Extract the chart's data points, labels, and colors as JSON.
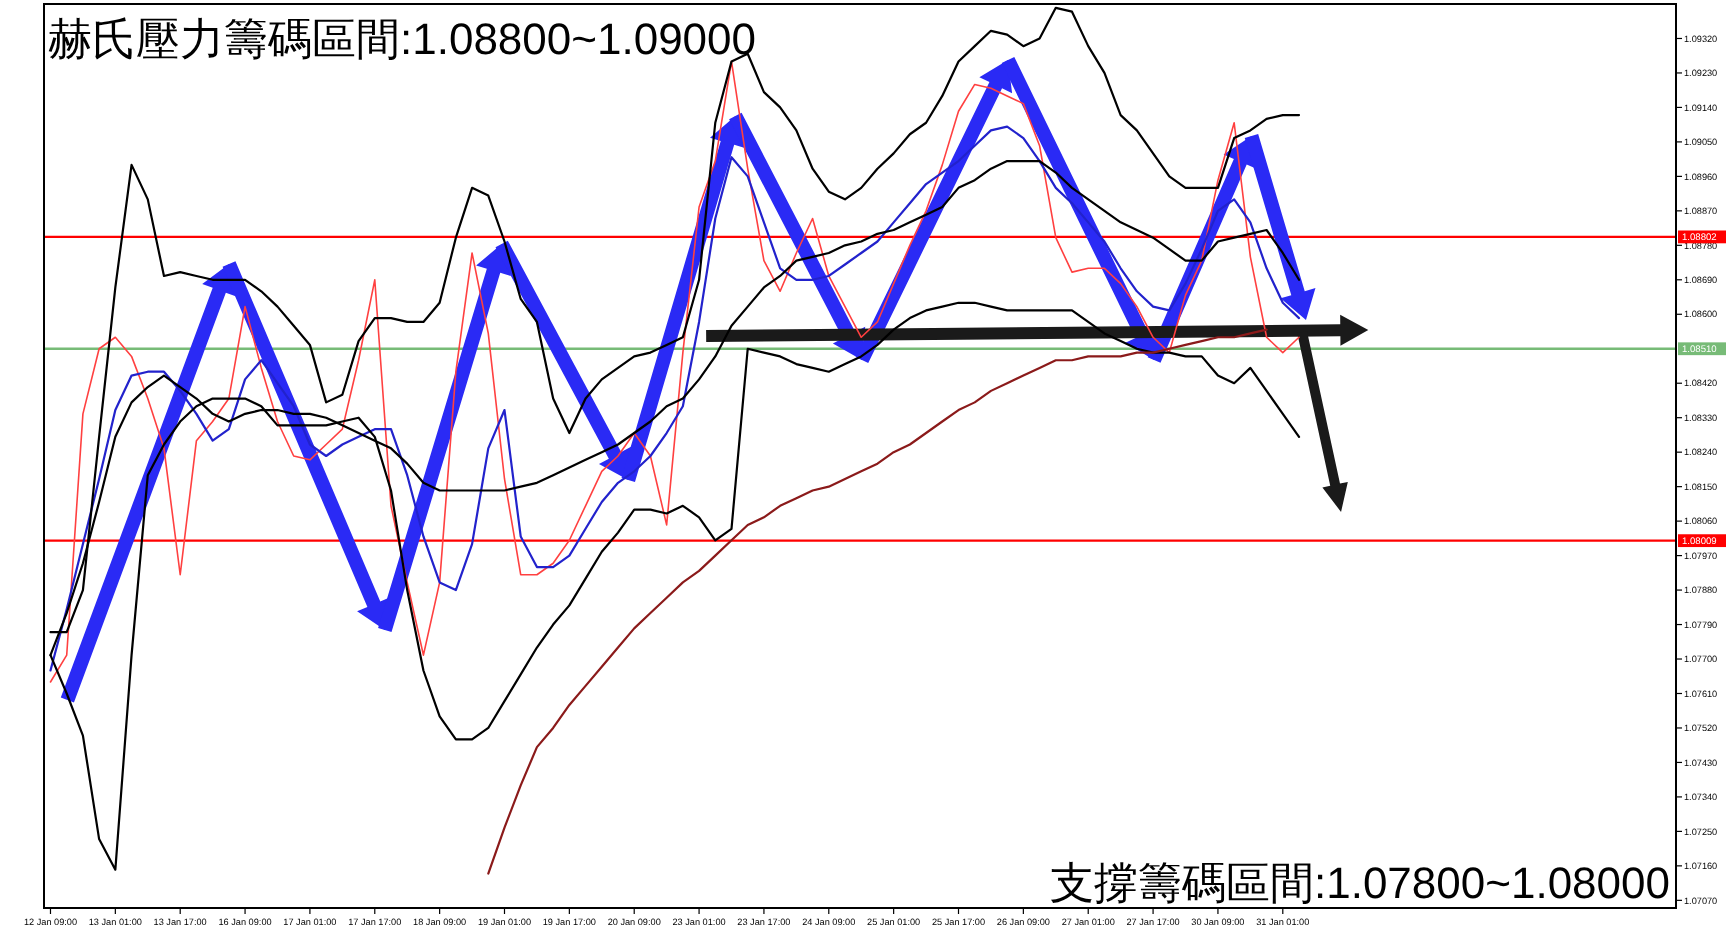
{
  "chart_data": {
    "type": "line",
    "title": "赫氏壓力籌碼區間:1.08800~1.09000",
    "annotations": [
      "支撐籌碼區間:1.07800~1.08000"
    ],
    "categories": [
      "12 Jan 09:00",
      null,
      null,
      null,
      "13 Jan 01:00",
      null,
      null,
      null,
      "13 Jan 17:00",
      null,
      null,
      null,
      "16 Jan 09:00",
      null,
      null,
      null,
      "17 Jan 01:00",
      null,
      null,
      null,
      "17 Jan 17:00",
      null,
      null,
      null,
      "18 Jan 09:00",
      null,
      null,
      null,
      "19 Jan 01:00",
      null,
      null,
      null,
      "19 Jan 17:00",
      null,
      null,
      null,
      "20 Jan 09:00",
      null,
      null,
      null,
      "23 Jan 01:00",
      null,
      null,
      null,
      "23 Jan 17:00",
      null,
      null,
      null,
      "24 Jan 09:00",
      null,
      null,
      null,
      "25 Jan 01:00",
      null,
      null,
      null,
      "25 Jan 17:00",
      null,
      null,
      null,
      "26 Jan 09:00",
      null,
      null,
      null,
      "27 Jan 01:00",
      null,
      null,
      null,
      "27 Jan 17:00",
      null,
      null,
      null,
      "30 Jan 09:00",
      null,
      null,
      null,
      "31 Jan 01:00",
      null,
      null,
      null,
      null,
      null,
      null,
      null,
      null,
      null,
      null,
      null,
      null,
      null,
      null,
      null,
      null,
      null,
      null,
      null,
      null,
      null,
      null,
      null,
      null
    ],
    "ylim": [
      1.0705,
      1.0941
    ],
    "yticks": [
      {
        "value": 1.0932,
        "label": "1.09320"
      },
      {
        "value": 1.0923,
        "label": "1.09230"
      },
      {
        "value": 1.0914,
        "label": "1.09140"
      },
      {
        "value": 1.0905,
        "label": "1.09050"
      },
      {
        "value": 1.0896,
        "label": "1.08960"
      },
      {
        "value": 1.0887,
        "label": "1.08870"
      },
      {
        "value": 1.0878,
        "label": "1.08780"
      },
      {
        "value": 1.0869,
        "label": "1.08690"
      },
      {
        "value": 1.086,
        "label": "1.08600"
      },
      {
        "value": 1.0842,
        "label": "1.08420"
      },
      {
        "value": 1.0833,
        "label": "1.08330"
      },
      {
        "value": 1.0824,
        "label": "1.08240"
      },
      {
        "value": 1.0815,
        "label": "1.08150"
      },
      {
        "value": 1.0806,
        "label": "1.08060"
      },
      {
        "value": 1.0797,
        "label": "1.07970"
      },
      {
        "value": 1.0788,
        "label": "1.07880"
      },
      {
        "value": 1.0779,
        "label": "1.07790"
      },
      {
        "value": 1.077,
        "label": "1.07700"
      },
      {
        "value": 1.0761,
        "label": "1.07610"
      },
      {
        "value": 1.0752,
        "label": "1.07520"
      },
      {
        "value": 1.0743,
        "label": "1.07430"
      },
      {
        "value": 1.0734,
        "label": "1.07340"
      },
      {
        "value": 1.0725,
        "label": "1.07250"
      },
      {
        "value": 1.0716,
        "label": "1.07160"
      },
      {
        "value": 1.0707,
        "label": "1.07070"
      }
    ],
    "ref_lines": [
      {
        "axis": "y",
        "value": 1.08802,
        "label": "1.08802",
        "color": "#ff0000"
      },
      {
        "axis": "y",
        "value": 1.08009,
        "label": "1.08009",
        "color": "#ff0000"
      },
      {
        "axis": "y",
        "value": 1.0851,
        "label": "1.08510",
        "color": "#77bb77"
      }
    ],
    "series": [
      {
        "color": "#ff4040",
        "values": [
          1.0764,
          1.0771,
          1.0834,
          1.0851,
          1.0854,
          1.0849,
          1.0838,
          1.0825,
          1.0792,
          1.0827,
          1.0832,
          1.0838,
          1.0862,
          1.0846,
          1.0832,
          1.0823,
          1.0822,
          1.0826,
          1.083,
          1.0848,
          1.0869,
          1.081,
          1.079,
          1.0771,
          1.079,
          1.0845,
          1.0876,
          1.0855,
          1.0817,
          1.0792,
          1.0792,
          1.0795,
          1.0801,
          1.081,
          1.0819,
          1.0823,
          1.0829,
          1.0823,
          1.0805,
          1.085,
          1.0888,
          1.09,
          1.0926,
          1.0898,
          1.0874,
          1.0866,
          1.0876,
          1.0885,
          1.087,
          1.0862,
          1.0854,
          1.0858,
          1.0868,
          1.0878,
          1.0887,
          1.0899,
          1.0913,
          1.092,
          1.0919,
          1.0917,
          1.0915,
          1.0904,
          1.088,
          1.0871,
          1.0872,
          1.0872,
          1.0868,
          1.0862,
          1.0854,
          1.085,
          1.0865,
          1.0874,
          1.0895,
          1.091,
          1.0875,
          1.0854,
          1.085,
          1.0854,
          null,
          null,
          null,
          null,
          null,
          null,
          null,
          null,
          null,
          null,
          null,
          null,
          null,
          null,
          null,
          null,
          null,
          null,
          null,
          null,
          null,
          null,
          null
        ]
      },
      {
        "color": "#2222cc",
        "values": [
          1.0767,
          1.0783,
          1.08,
          1.0817,
          1.0835,
          1.0844,
          1.0845,
          1.0845,
          1.084,
          1.0834,
          1.0827,
          1.083,
          1.0843,
          1.0848,
          1.0842,
          1.0836,
          1.0826,
          1.0823,
          1.0826,
          1.0828,
          1.083,
          1.083,
          1.0818,
          1.0802,
          1.079,
          1.0788,
          1.08,
          1.0825,
          1.0835,
          1.0802,
          1.0794,
          1.0794,
          1.0797,
          1.0804,
          1.0811,
          1.0816,
          1.0819,
          1.0823,
          1.0829,
          1.0836,
          1.0858,
          1.0885,
          1.0901,
          1.0896,
          1.0884,
          1.0872,
          1.0869,
          1.0869,
          1.087,
          1.0873,
          1.0876,
          1.0879,
          1.0884,
          1.0889,
          1.0894,
          1.0897,
          1.09,
          1.0904,
          1.0908,
          1.0909,
          1.0906,
          1.09,
          1.0893,
          1.0889,
          1.0884,
          1.0879,
          1.0872,
          1.0866,
          1.0862,
          1.0861,
          1.0868,
          1.0877,
          1.0887,
          1.089,
          1.0884,
          1.0872,
          1.0863,
          1.0859,
          null,
          null,
          null,
          null,
          null,
          null,
          null,
          null,
          null,
          null,
          null,
          null,
          null,
          null,
          null,
          null,
          null,
          null,
          null,
          null,
          null,
          null,
          null
        ]
      },
      {
        "color": "#000000",
        "values": [
          1.0777,
          1.0777,
          1.0788,
          1.0828,
          1.0867,
          1.0899,
          1.089,
          1.087,
          1.0871,
          1.087,
          1.0869,
          1.0869,
          1.0869,
          1.0866,
          1.0862,
          1.0857,
          1.0852,
          1.0837,
          1.0839,
          1.0853,
          1.0859,
          1.0859,
          1.0858,
          1.0858,
          1.0863,
          1.088,
          1.0893,
          1.0891,
          1.0879,
          1.0864,
          1.0858,
          1.0838,
          1.0829,
          1.0838,
          1.0843,
          1.0846,
          1.0849,
          1.085,
          1.0852,
          1.0854,
          1.0869,
          1.091,
          1.0926,
          1.0928,
          1.0918,
          1.0914,
          1.0908,
          1.0898,
          1.0892,
          1.089,
          1.0893,
          1.0898,
          1.0902,
          1.0907,
          1.091,
          1.0917,
          1.0926,
          1.093,
          1.0934,
          1.0933,
          1.093,
          1.0932,
          1.094,
          1.0939,
          1.093,
          1.0923,
          1.0912,
          1.0908,
          1.0902,
          1.0896,
          1.0893,
          1.0893,
          1.0893,
          1.0906,
          1.0908,
          1.0911,
          1.0912,
          1.0912,
          null,
          null,
          null,
          null,
          null,
          null,
          null,
          null,
          null,
          null,
          null,
          null,
          null,
          null,
          null,
          null,
          null,
          null,
          null,
          null,
          null,
          null,
          null
        ]
      },
      {
        "color": "#000000",
        "values": [
          1.0771,
          1.0782,
          1.0795,
          1.0811,
          1.0828,
          1.0837,
          1.0841,
          1.0844,
          1.0841,
          1.0838,
          1.0834,
          1.0832,
          1.0834,
          1.0835,
          1.0835,
          1.0834,
          1.0834,
          1.0833,
          1.0831,
          1.0829,
          1.0827,
          1.0825,
          1.0821,
          1.0816,
          1.0814,
          1.0814,
          1.0814,
          1.0814,
          1.0814,
          1.0815,
          1.0816,
          1.0818,
          1.082,
          1.0822,
          1.0824,
          1.0826,
          1.0829,
          1.0832,
          1.0836,
          1.0838,
          1.0843,
          1.0849,
          1.0857,
          1.0862,
          1.0867,
          1.087,
          1.0874,
          1.0875,
          1.0876,
          1.0878,
          1.0879,
          1.0881,
          1.0882,
          1.0884,
          1.0886,
          1.0888,
          1.0893,
          1.0895,
          1.0898,
          1.09,
          1.09,
          1.09,
          1.0897,
          1.0893,
          1.089,
          1.0887,
          1.0884,
          1.0882,
          1.088,
          1.0877,
          1.0874,
          1.0874,
          1.0879,
          1.088,
          1.0881,
          1.0882,
          1.0876,
          1.0869,
          null,
          null,
          null,
          null,
          null,
          null,
          null,
          null,
          null,
          null,
          null,
          null,
          null,
          null,
          null,
          null,
          null,
          null,
          null,
          null,
          null,
          null,
          null
        ]
      },
      {
        "color": "#000000",
        "values": [
          1.0771,
          1.0761,
          1.075,
          1.0723,
          1.0715,
          1.0771,
          1.0818,
          1.0826,
          1.0832,
          1.0836,
          1.0838,
          1.0838,
          1.0838,
          1.0836,
          1.0831,
          1.0831,
          1.0831,
          1.0831,
          1.0832,
          1.0833,
          1.0828,
          1.0814,
          1.0788,
          1.0767,
          1.0755,
          1.0749,
          1.0749,
          1.0752,
          1.0759,
          1.0766,
          1.0773,
          1.0779,
          1.0784,
          1.0791,
          1.0798,
          1.0803,
          1.0809,
          1.0809,
          1.0808,
          1.081,
          1.0807,
          1.0801,
          1.0804,
          1.0851,
          1.085,
          1.0849,
          1.0847,
          1.0846,
          1.0845,
          1.0847,
          1.0849,
          1.0852,
          1.0856,
          1.0859,
          1.0861,
          1.0862,
          1.0863,
          1.0863,
          1.0862,
          1.0861,
          1.0861,
          1.0861,
          1.0861,
          1.0861,
          1.0858,
          1.0855,
          1.0853,
          1.0851,
          1.085,
          1.085,
          1.0849,
          1.0849,
          1.0844,
          1.0842,
          1.0846,
          1.084,
          1.0834,
          1.0828,
          null,
          null,
          null,
          null,
          null,
          null,
          null,
          null,
          null,
          null,
          null,
          null,
          null,
          null,
          null,
          null,
          null,
          null,
          null,
          null,
          null,
          null,
          null
        ]
      },
      {
        "color": "#8b1a1a",
        "values": [
          null,
          null,
          null,
          null,
          null,
          null,
          null,
          null,
          null,
          null,
          null,
          null,
          null,
          null,
          null,
          null,
          null,
          null,
          null,
          null,
          null,
          null,
          null,
          null,
          null,
          null,
          null,
          1.0714,
          1.0726,
          1.0737,
          1.0747,
          1.0752,
          1.0758,
          1.0763,
          1.0768,
          1.0773,
          1.0778,
          1.0782,
          1.0786,
          1.079,
          1.0793,
          1.0797,
          1.0801,
          1.0805,
          1.0807,
          1.081,
          1.0812,
          1.0814,
          1.0815,
          1.0817,
          1.0819,
          1.0821,
          1.0824,
          1.0826,
          1.0829,
          1.0832,
          1.0835,
          1.0837,
          1.084,
          1.0842,
          1.0844,
          1.0846,
          1.0848,
          1.0848,
          1.0849,
          1.0849,
          1.0849,
          1.085,
          1.085,
          1.0851,
          1.0852,
          1.0853,
          1.0854,
          1.0854,
          1.0855,
          1.0856,
          null,
          null,
          null,
          null,
          null,
          null,
          null,
          null,
          null,
          null,
          null,
          null,
          null,
          null,
          null,
          null,
          null,
          null,
          null,
          null,
          null,
          null,
          null,
          null,
          null
        ]
      }
    ]
  }
}
